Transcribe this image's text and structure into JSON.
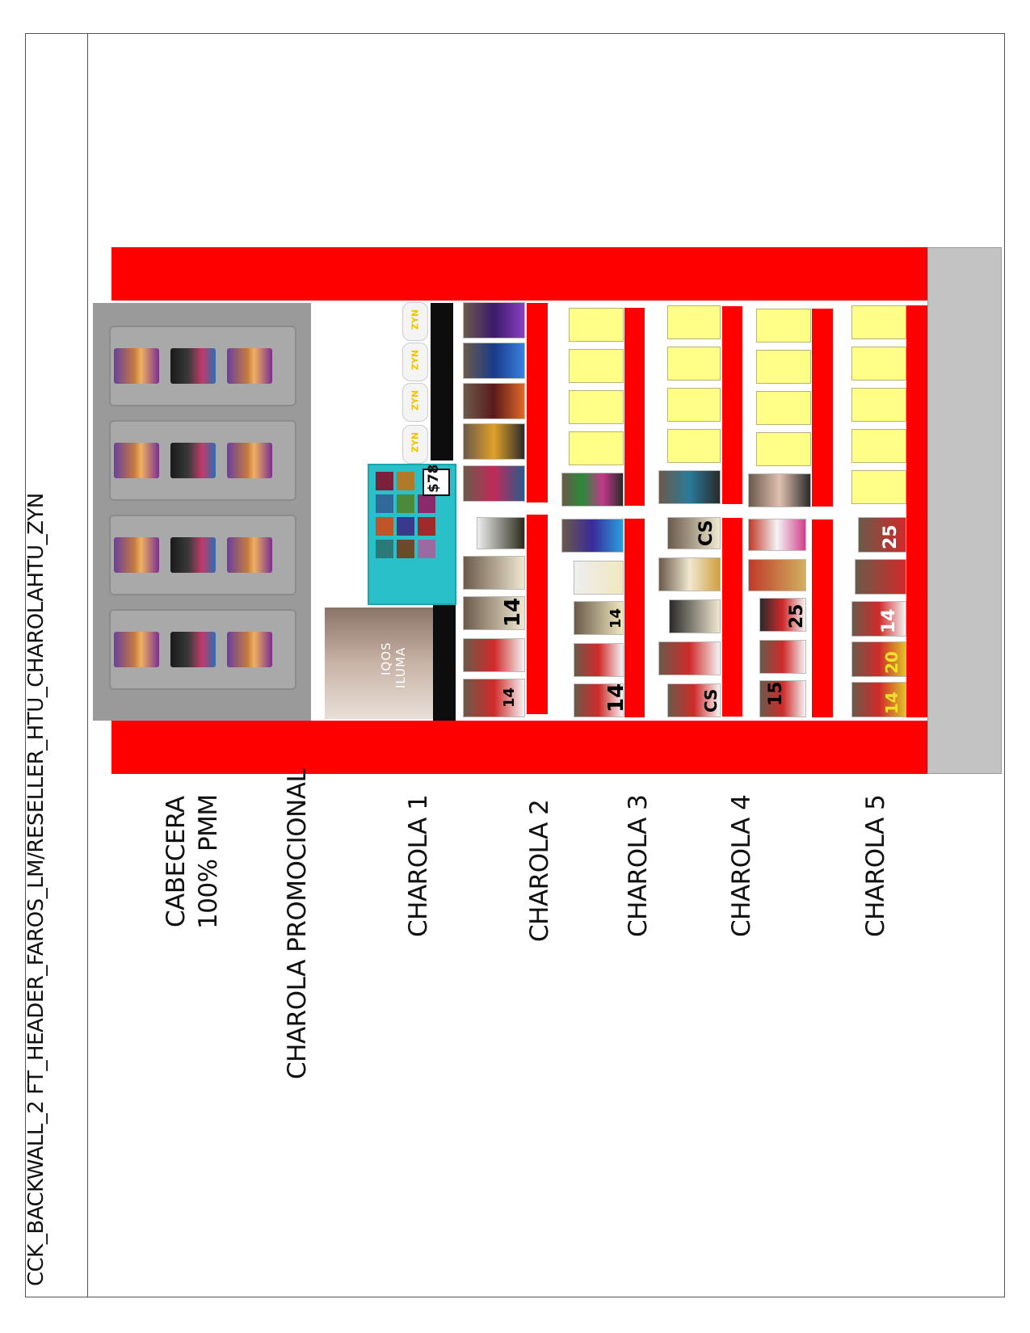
{
  "document": {
    "title": "CCK_BACKWALL_2 FT_HEADER_FAROS_LM/RESELLER_HTU_CHAROLAHTU_ZYN"
  },
  "sections": {
    "cabecera_line1": "CABECERA",
    "cabecera_line2": "100% PMM",
    "promocional": "CHAROLA PROMOCIONAL",
    "charola1": "CHAROLA 1",
    "charola2": "CHAROLA 2",
    "charola3": "CHAROLA 3",
    "charola4": "CHAROLA 4",
    "charola5": "CHAROLA 5"
  },
  "promo": {
    "iqos_brand": "IQOS",
    "iqos_model": "ILUMA",
    "price_tag": "$78"
  },
  "zyn": {
    "brand": "ZYN"
  },
  "pack_labels": {
    "c1_count_a": "14",
    "c1_count_b": "14",
    "c2_count_a": "14",
    "c2_count_b": "14",
    "c3_code_a": "CS",
    "c3_code_b": "CS",
    "c4_count_a": "25",
    "c4_count_b": "15",
    "c5_count_a": "25",
    "c5_count_b": "14",
    "c5_count_c": "20",
    "c5_count_d": "14"
  },
  "colors": {
    "fixture_red": "#ff0000",
    "placeholder_yellow": "#ffff88",
    "header_gray": "#9a9a9a"
  }
}
